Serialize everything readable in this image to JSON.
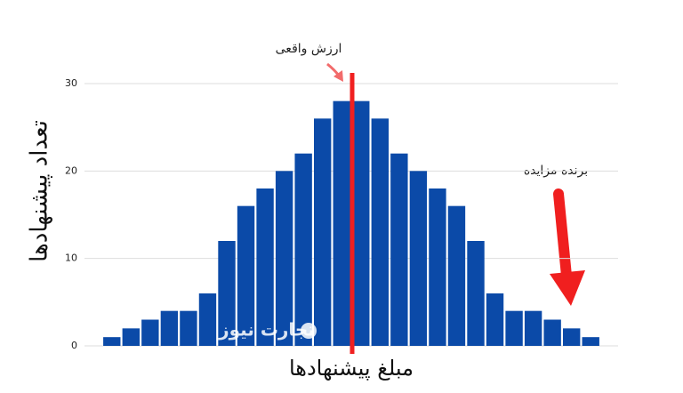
{
  "chart_data": {
    "type": "bar",
    "y_label": "تعداد پیشنهادها",
    "x_label": "مبلغ پیشنهادها",
    "annotations": [
      "ارزش واقعی",
      "برنده مزایده"
    ],
    "watermark": "تجارت نیوز",
    "categories": [
      null,
      null,
      null,
      null,
      null,
      null,
      null,
      null,
      null,
      null,
      null,
      null,
      null,
      null,
      null,
      null,
      null,
      null,
      null,
      null,
      null,
      null,
      null,
      null,
      null,
      null
    ],
    "values": [
      1,
      2,
      3,
      4,
      4,
      6,
      12,
      16,
      18,
      20,
      22,
      26,
      28,
      28,
      26,
      22,
      20,
      18,
      16,
      12,
      6,
      4,
      4,
      3,
      2,
      1
    ],
    "color": "#0b4aa8",
    "ylim": [
      0,
      30
    ],
    "yticks": [
      0,
      10,
      20,
      30
    ],
    "grid": true
  }
}
